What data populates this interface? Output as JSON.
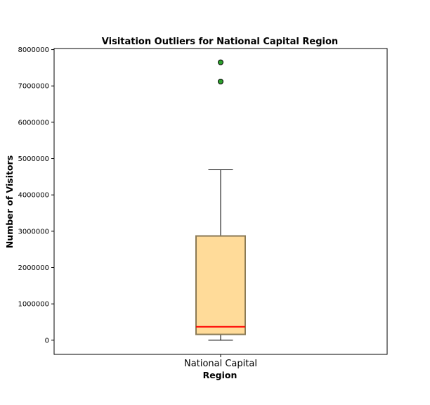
{
  "chart_data": {
    "type": "box",
    "title": "Visitation Outliers for National Capital  Region",
    "xlabel": "Region",
    "ylabel": "Number of Visitors",
    "categories": [
      "National Capital"
    ],
    "ylim": [
      -390000,
      8030000
    ],
    "yticks": [
      0,
      1000000,
      2000000,
      3000000,
      4000000,
      5000000,
      6000000,
      7000000,
      8000000
    ],
    "ytick_labels": [
      "0",
      "1000000",
      "2000000",
      "3000000",
      "4000000",
      "5000000",
      "6000000",
      "7000000",
      "8000000"
    ],
    "grid": false,
    "boxes": [
      {
        "category": "National Capital",
        "whisker_low": 0,
        "q1": 160000,
        "median": 370000,
        "q3": 2870000,
        "whisker_high": 4690000,
        "outliers": [
          7120000,
          7650000
        ]
      }
    ],
    "colors": {
      "box_fill": "#ffdb99",
      "box_edge": "#8a7a55",
      "median": "#ff0000",
      "whisker": "#000000",
      "outlier_fill": "#2ca02c",
      "outlier_edge": "#000000"
    }
  }
}
